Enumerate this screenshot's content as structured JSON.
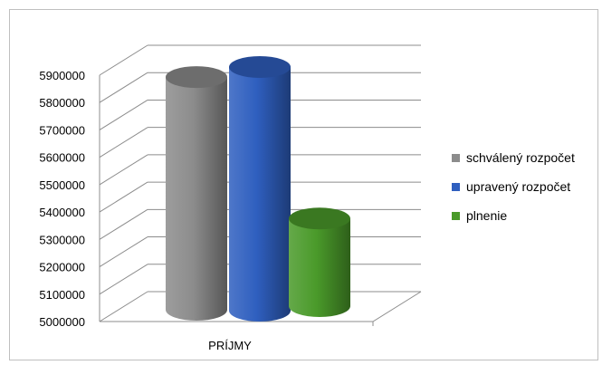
{
  "chart_data": {
    "type": "bar",
    "style": "3d-cylinder",
    "categories": [
      "PRÍJMY"
    ],
    "series": [
      {
        "name": "schválený rozpočet",
        "values": [
          5850000
        ],
        "color": "#8c8c8c"
      },
      {
        "name": "upravený rozpočet",
        "values": [
          5890000
        ],
        "color": "#2f5fbf"
      },
      {
        "name": "plnenie",
        "values": [
          5320000
        ],
        "color": "#4a9a2a"
      }
    ],
    "ylim": [
      5000000,
      5900000
    ],
    "yticks": [
      "5000000",
      "5100000",
      "5200000",
      "5300000",
      "5400000",
      "5500000",
      "5600000",
      "5700000",
      "5800000",
      "5900000"
    ],
    "grid": true,
    "legend": "right"
  }
}
